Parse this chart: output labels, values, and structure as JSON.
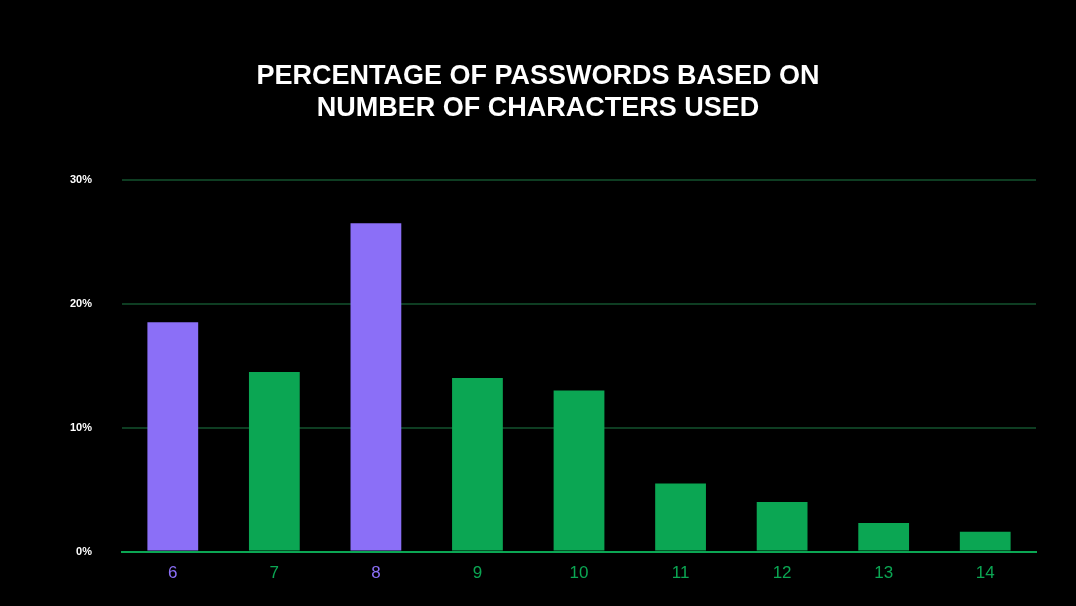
{
  "chart_data": {
    "type": "bar",
    "title": [
      "PERCENTAGE OF PASSWORDS BASED ON",
      "NUMBER OF CHARACTERS USED"
    ],
    "categories": [
      "6",
      "7",
      "8",
      "9",
      "10",
      "11",
      "12",
      "13",
      "14"
    ],
    "values": [
      18.5,
      14.5,
      26.5,
      14.0,
      13.0,
      5.5,
      4.0,
      2.3,
      1.6
    ],
    "colors": [
      "#8b6ff7",
      "#0ba653",
      "#8b6ff7",
      "#0ba653",
      "#0ba653",
      "#0ba653",
      "#0ba653",
      "#0ba653",
      "#0ba653"
    ],
    "ylim": [
      0,
      30
    ],
    "yticks": [
      {
        "value": 0,
        "label": "0%"
      },
      {
        "value": 10,
        "label": "10%"
      },
      {
        "value": 20,
        "label": "20%"
      },
      {
        "value": 30,
        "label": "30%"
      }
    ],
    "grid": "y",
    "legend": false
  }
}
